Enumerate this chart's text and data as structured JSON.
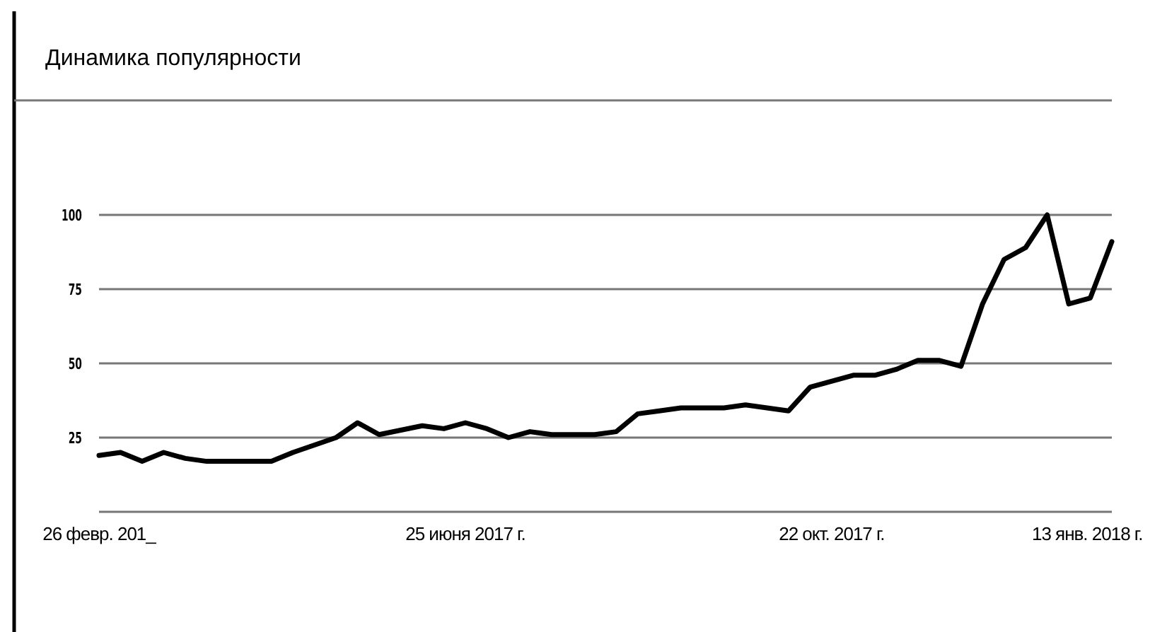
{
  "chart_data": {
    "type": "line",
    "title": "Динамика популярности",
    "x": [
      "2017-02-26",
      "2017-03-05",
      "2017-03-12",
      "2017-03-19",
      "2017-03-26",
      "2017-04-02",
      "2017-04-23",
      "2017-04-30",
      "2017-05-14",
      "2017-05-21",
      "2017-05-28",
      "2017-06-11",
      "2017-06-18",
      "2017-06-25",
      "2017-07-02",
      "2017-07-09",
      "2017-07-16",
      "2017-07-23",
      "2017-08-06",
      "2017-08-13",
      "2017-08-20",
      "2017-08-27",
      "2017-09-03",
      "2017-09-17",
      "2017-09-24",
      "2017-10-08",
      "2017-10-15",
      "2017-10-29",
      "2017-11-05",
      "2017-11-12",
      "2017-11-19",
      "2017-11-26",
      "2017-12-03",
      "2017-12-10",
      "2017-12-17",
      "2017-12-24",
      "2017-12-31",
      "2018-01-07",
      "2018-01-14",
      "2018-01-21"
    ],
    "series": [
      {
        "color": "#000000",
        "values": [
          19,
          20,
          17,
          20,
          18,
          17,
          17,
          20,
          25,
          30,
          26,
          29,
          28,
          30,
          28,
          25,
          27,
          26,
          26,
          27,
          33,
          34,
          35,
          35,
          36,
          34,
          42,
          46,
          46,
          48,
          51,
          51,
          49,
          70,
          85,
          89,
          100,
          70,
          72,
          91
        ]
      }
    ],
    "xlim": [
      "2017-02-26",
      "2018-01-21"
    ],
    "xticks": [
      {
        "value": "2017-02-26",
        "label": "26 февр. 201_"
      },
      {
        "value": "2017-06-25",
        "label": "25 июня 2017 г."
      },
      {
        "value": "2017-10-22",
        "label": "22 окт. 2017 г."
      },
      {
        "value": "2018-01-13",
        "label": "13 янв. 2018 г."
      }
    ],
    "ylim": [
      0,
      100
    ],
    "yticks": [
      {
        "value": 0,
        "label": null
      },
      25,
      50,
      75,
      100
    ],
    "grid": "y",
    "marker": "none",
    "line_style": "solid"
  }
}
